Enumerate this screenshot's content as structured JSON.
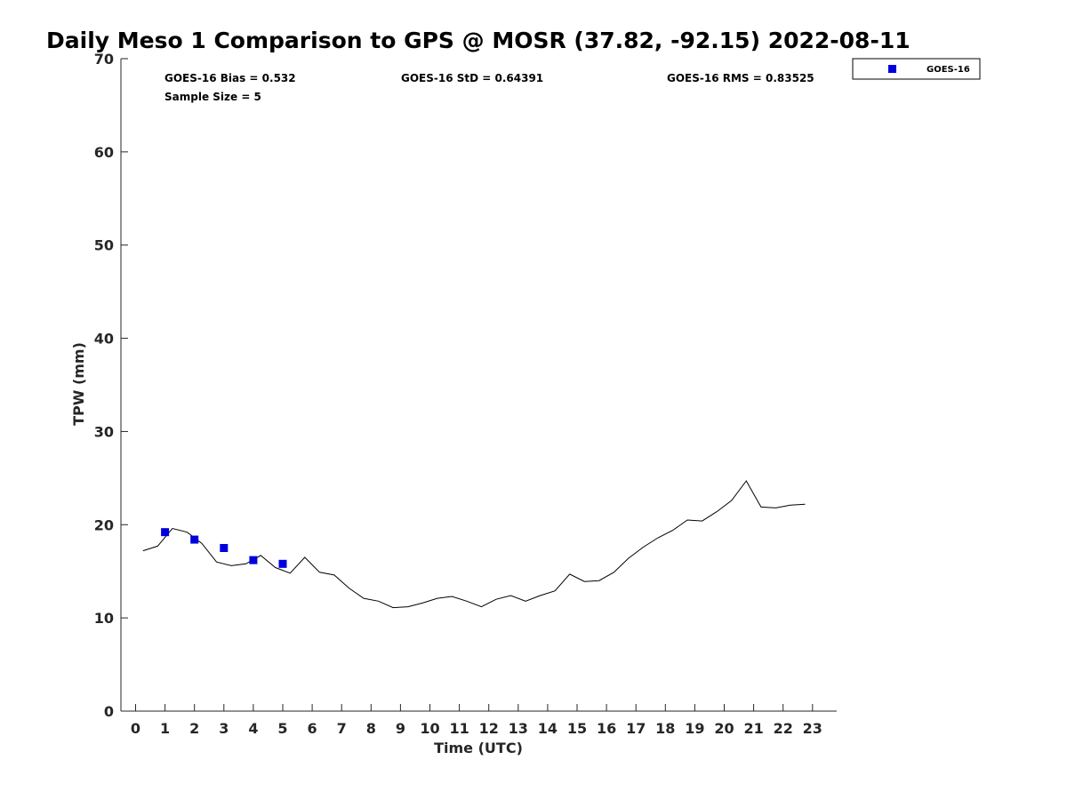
{
  "chart_data": {
    "type": "line",
    "title": "Daily Meso 1 Comparison to GPS @ MOSR (37.82, -92.15) 2022-08-11",
    "xlabel": "Time (UTC)",
    "ylabel": "TPW (mm)",
    "xlim": [
      -0.5,
      23.8
    ],
    "ylim": [
      0,
      70
    ],
    "xticks": [
      0,
      1,
      2,
      3,
      4,
      5,
      6,
      7,
      8,
      9,
      10,
      11,
      12,
      13,
      14,
      15,
      16,
      17,
      18,
      19,
      20,
      21,
      22,
      23
    ],
    "yticks": [
      0,
      10,
      20,
      30,
      40,
      50,
      60,
      70
    ],
    "grid": false,
    "legend_position": "outside-top-right",
    "stats": {
      "bias": "GOES-16 Bias = 0.532",
      "std": "GOES-16 StD = 0.64391",
      "rms": "GOES-16 RMS = 0.83525",
      "sample_size": "Sample Size = 5"
    },
    "legend": [
      {
        "label": "GOES-16",
        "marker": "square",
        "color": "#0000dd"
      }
    ],
    "series": [
      {
        "kind": "line",
        "color": "#000000",
        "x": [
          0.25,
          0.75,
          1.25,
          1.75,
          2.25,
          2.75,
          3.25,
          3.75,
          4.25,
          4.75,
          5.25,
          5.75,
          6.25,
          6.75,
          7.25,
          7.75,
          8.25,
          8.75,
          9.25,
          9.75,
          10.25,
          10.75,
          11.25,
          11.75,
          12.25,
          12.75,
          13.25,
          13.75,
          14.25,
          14.75,
          15.25,
          15.75,
          16.25,
          16.75,
          17.25,
          17.75,
          18.25,
          18.75,
          19.25,
          19.75,
          20.25,
          20.75,
          21.25,
          21.75,
          22.25,
          22.75
        ],
        "values": [
          17.2,
          17.7,
          19.6,
          19.2,
          18.0,
          16.0,
          15.6,
          15.8,
          16.7,
          15.4,
          14.8,
          16.5,
          14.9,
          14.6,
          13.2,
          12.1,
          11.8,
          11.1,
          11.2,
          11.6,
          12.1,
          12.3,
          11.8,
          11.2,
          12.0,
          12.4,
          11.8,
          12.4,
          12.9,
          14.7,
          13.9,
          14.0,
          14.9,
          16.4,
          17.6,
          18.6,
          19.4,
          20.5,
          20.4,
          21.4,
          22.6,
          24.7,
          21.9,
          21.8,
          22.1,
          22.2
        ]
      },
      {
        "name": "GOES-16",
        "kind": "scatter",
        "marker": "square",
        "color": "#0000dd",
        "x": [
          1,
          2,
          3,
          4,
          5
        ],
        "values": [
          19.2,
          18.4,
          17.5,
          16.2,
          15.8
        ]
      }
    ]
  }
}
